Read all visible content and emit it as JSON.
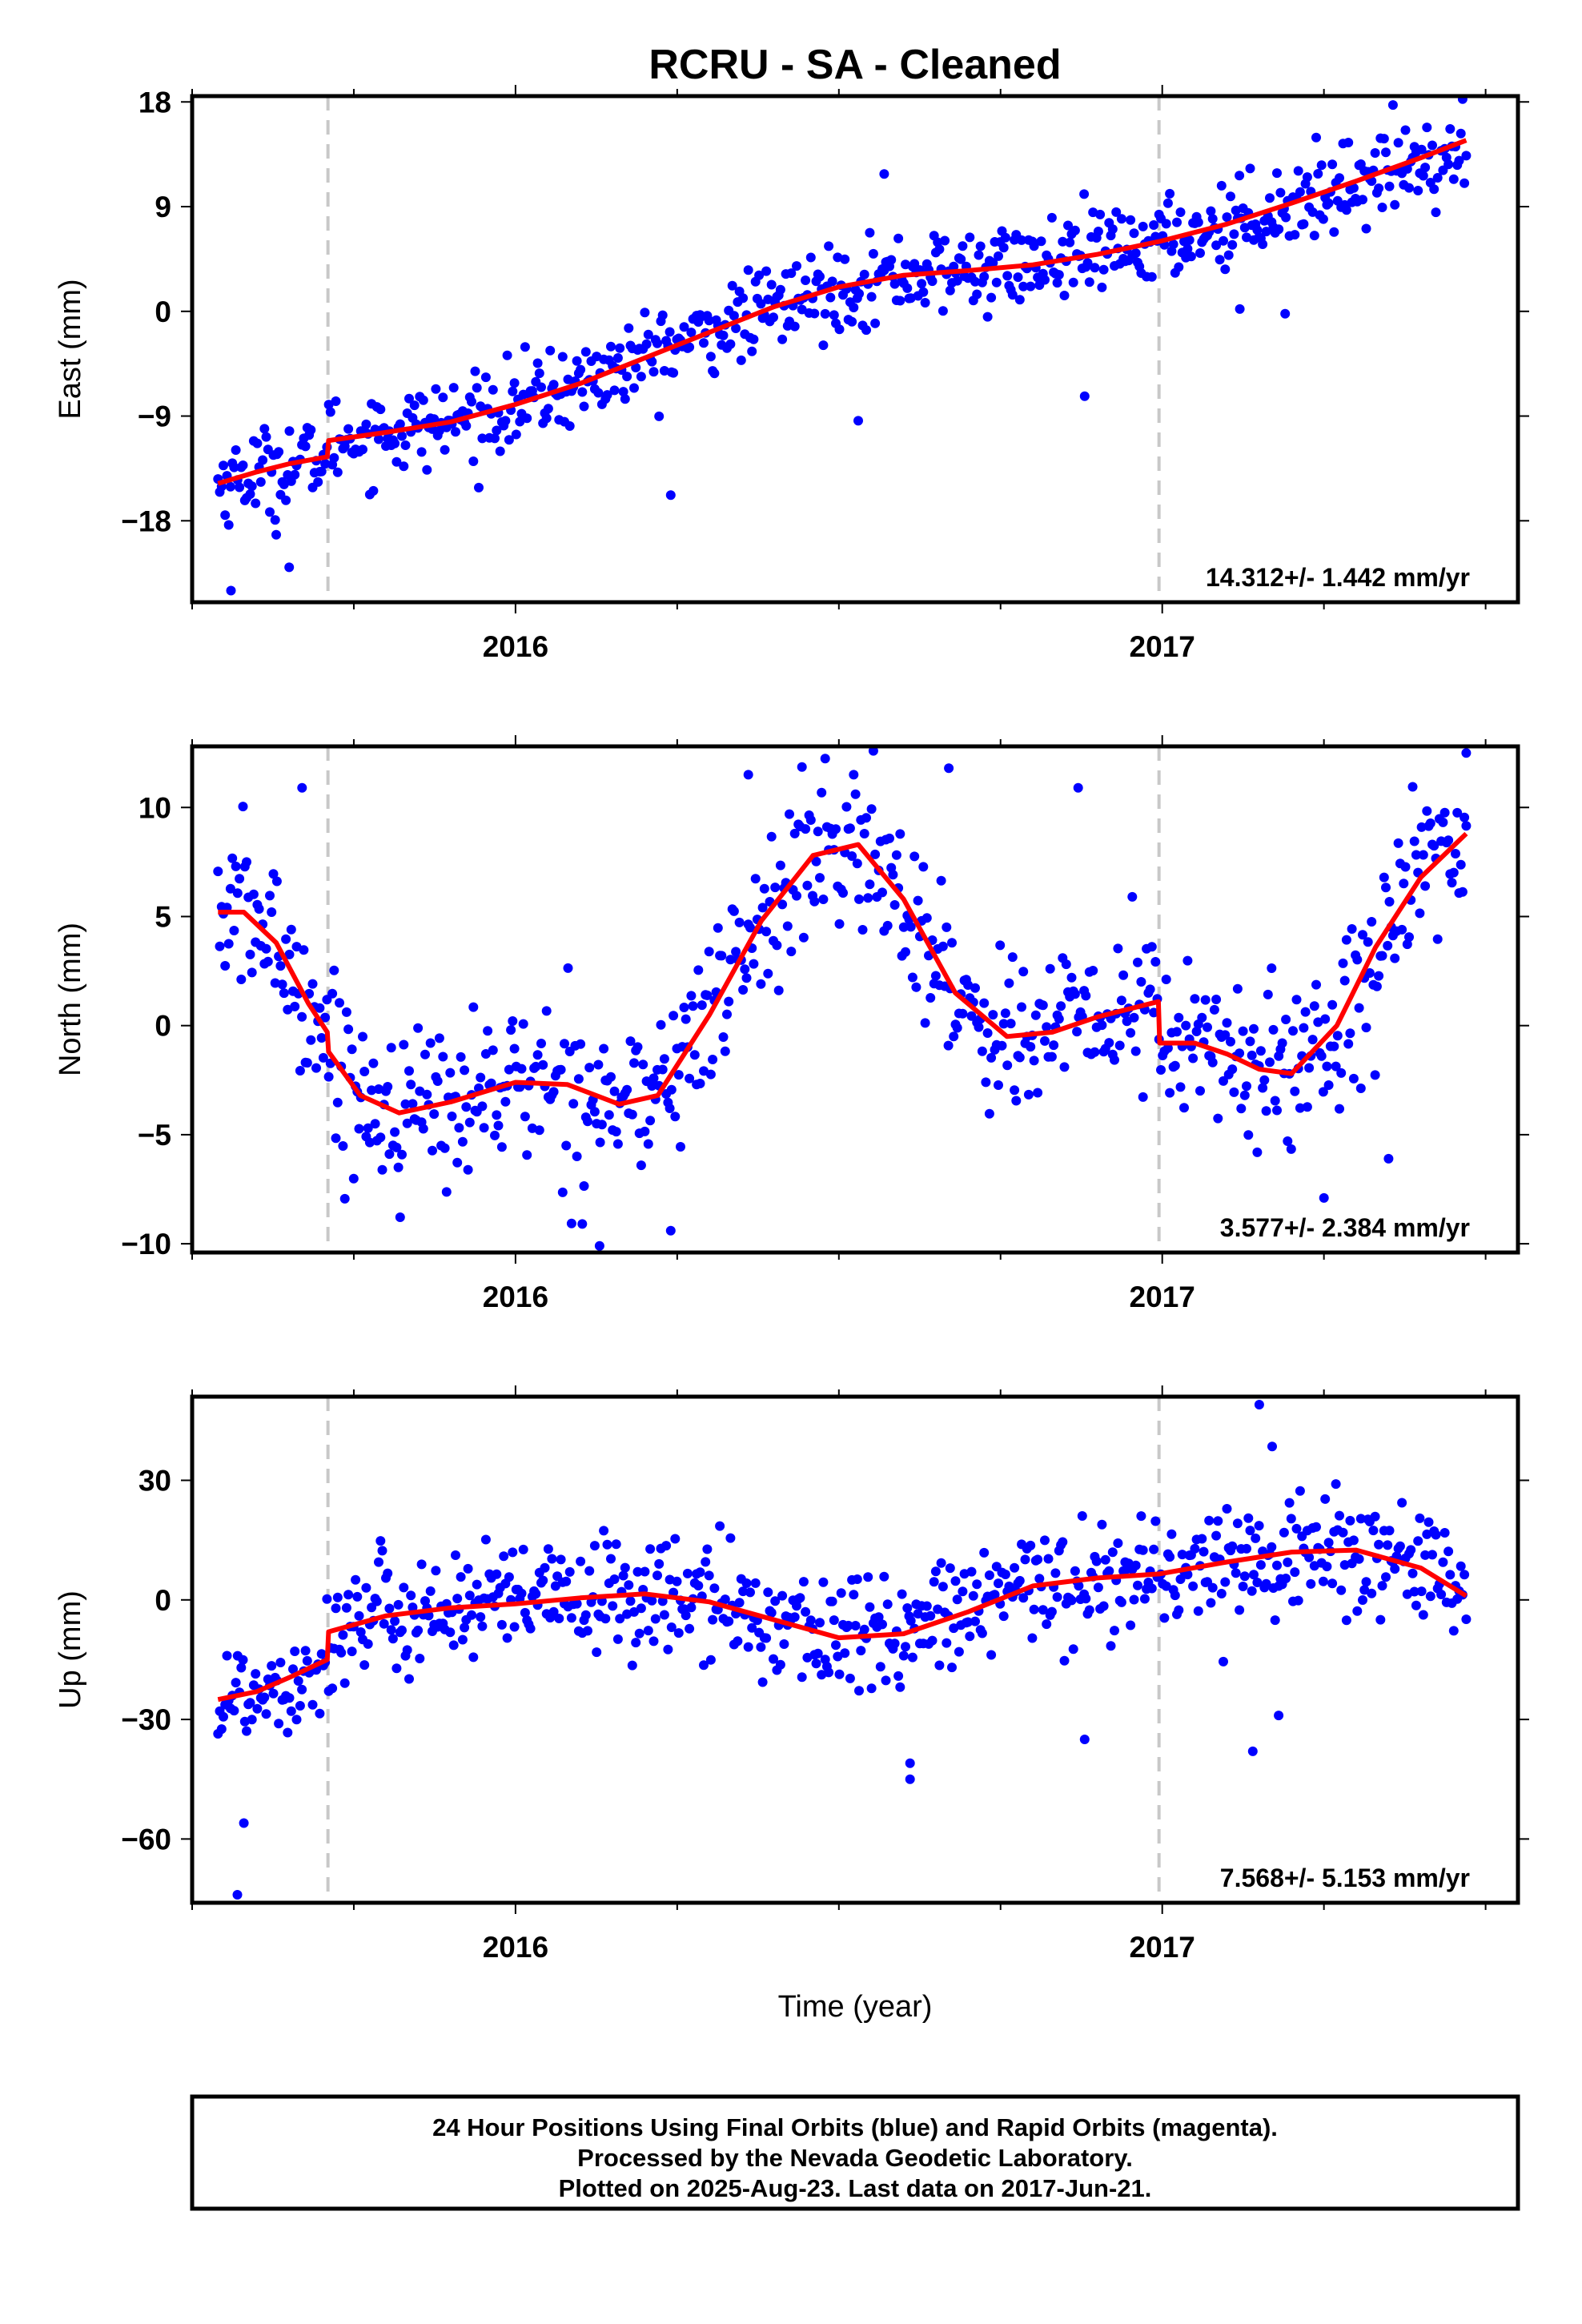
{
  "title": "RCRU  - SA - Cleaned",
  "xlabel": "Time (year)",
  "caption": {
    "line1": "24 Hour Positions Using Final Orbits (blue) and Rapid Orbits (magenta).",
    "line2": "Processed by the Nevada Geodetic Laboratory.",
    "line3": "Plotted on 2025-Aug-23. Last data on 2017-Jun-21."
  },
  "colors": {
    "points": "#0000ff",
    "fit": "#ff0000",
    "break_lines": "#c8c8c8",
    "frame": "#000000"
  },
  "chart_data": [
    {
      "type": "scatter",
      "ylabel": "East (mm)",
      "xlim": [
        2015.5,
        2017.55
      ],
      "ylim": [
        -25,
        18.5
      ],
      "yticks": [
        18,
        9,
        0,
        -9,
        -18
      ],
      "ytick_labels": [
        "18",
        "9",
        "0",
        "−9",
        "−18"
      ],
      "xticks": [
        2016,
        2017
      ],
      "xtick_labels": [
        "2016",
        "2017"
      ],
      "break_lines": [
        2015.71,
        2016.995
      ],
      "rate_label": "14.312+/- 1.442 mm/yr",
      "fit": {
        "x": [
          2015.54,
          2015.6,
          2015.65,
          2015.709,
          2015.711,
          2015.8,
          2015.9,
          2016.0,
          2016.1,
          2016.2,
          2016.3,
          2016.4,
          2016.5,
          2016.6,
          2016.7,
          2016.8,
          2016.9,
          2016.995,
          2017.1,
          2017.2,
          2017.3,
          2017.4,
          2017.47
        ],
        "y": [
          -14.8,
          -13.8,
          -13.1,
          -12.5,
          -11.1,
          -10.4,
          -9.5,
          -8.0,
          -6.2,
          -4.0,
          -1.8,
          0.4,
          2.1,
          3.1,
          3.5,
          4.0,
          4.9,
          6.0,
          7.5,
          9.3,
          11.2,
          13.2,
          14.7
        ]
      },
      "noise": 1.8,
      "outliers": [
        [
          2015.56,
          -24.0
        ],
        [
          2015.65,
          -22.0
        ],
        [
          2015.63,
          -19.2
        ],
        [
          2016.24,
          -15.8
        ],
        [
          2016.57,
          11.8
        ],
        [
          2016.53,
          -9.4
        ],
        [
          2016.88,
          -7.3
        ],
        [
          2017.12,
          0.2
        ],
        [
          2017.19,
          -0.2
        ]
      ]
    },
    {
      "type": "scatter",
      "ylabel": "North (mm)",
      "xlim": [
        2015.5,
        2017.55
      ],
      "ylim": [
        -10.4,
        12.8
      ],
      "yticks": [
        10,
        5,
        0,
        -5,
        -10
      ],
      "ytick_labels": [
        "10",
        "5",
        "0",
        "−5",
        "−10"
      ],
      "xticks": [
        2016,
        2017
      ],
      "xtick_labels": [
        "2016",
        "2017"
      ],
      "break_lines": [
        2015.71,
        2016.995
      ],
      "rate_label": "3.577+/- 2.384 mm/yr",
      "fit": {
        "x": [
          2015.54,
          2015.58,
          2015.63,
          2015.68,
          2015.709,
          2015.711,
          2015.76,
          2015.82,
          2015.9,
          2016.0,
          2016.08,
          2016.16,
          2016.22,
          2016.3,
          2016.38,
          2016.46,
          2016.53,
          2016.6,
          2016.68,
          2016.76,
          2016.83,
          2016.9,
          2016.994,
          2016.996,
          2017.05,
          2017.1,
          2017.15,
          2017.2,
          2017.27,
          2017.33,
          2017.4,
          2017.47
        ],
        "y": [
          5.2,
          5.2,
          3.8,
          1.0,
          -0.3,
          -1.2,
          -3.2,
          -4.0,
          -3.5,
          -2.6,
          -2.7,
          -3.6,
          -3.2,
          0.5,
          4.8,
          7.8,
          8.3,
          5.8,
          1.5,
          -0.5,
          -0.3,
          0.4,
          1.1,
          -0.8,
          -0.8,
          -1.3,
          -2.0,
          -2.2,
          0.0,
          3.6,
          6.8,
          8.8
        ]
      },
      "noise": 1.9,
      "outliers": [
        [
          2016.36,
          11.5
        ],
        [
          2016.67,
          11.8
        ],
        [
          2016.87,
          10.9
        ],
        [
          2017.47,
          12.5
        ],
        [
          2015.67,
          10.9
        ],
        [
          2016.13,
          -10.1
        ],
        [
          2016.24,
          -9.4
        ],
        [
          2017.25,
          -7.9
        ],
        [
          2017.35,
          -6.1
        ]
      ]
    },
    {
      "type": "scatter",
      "ylabel": "Up (mm)",
      "xlim": [
        2015.5,
        2017.55
      ],
      "ylim": [
        -76,
        51
      ],
      "yticks": [
        30,
        0,
        -30,
        -60
      ],
      "ytick_labels": [
        "30",
        "0",
        "−30",
        "−60"
      ],
      "xticks": [
        2016,
        2017
      ],
      "xtick_labels": [
        "2016",
        "2017"
      ],
      "break_lines": [
        2015.71,
        2016.995
      ],
      "rate_label": "7.568+/- 5.153 mm/yr",
      "fit": {
        "x": [
          2015.54,
          2015.6,
          2015.65,
          2015.709,
          2015.711,
          2015.8,
          2015.9,
          2016.0,
          2016.1,
          2016.2,
          2016.3,
          2016.4,
          2016.5,
          2016.6,
          2016.7,
          2016.8,
          2016.9,
          2016.995,
          2017.1,
          2017.2,
          2017.3,
          2017.4,
          2017.47
        ],
        "y": [
          -25.0,
          -23.0,
          -19.5,
          -15.0,
          -8.0,
          -4.0,
          -2.0,
          -1.0,
          0.5,
          1.5,
          -0.5,
          -5.0,
          -9.5,
          -8.5,
          -3.0,
          3.5,
          5.5,
          6.5,
          9.5,
          12.0,
          12.5,
          8.0,
          1.0
        ]
      },
      "noise": 7.5,
      "outliers": [
        [
          2015.57,
          -74.0
        ],
        [
          2015.58,
          -56.0
        ],
        [
          2016.61,
          -45.0
        ],
        [
          2016.61,
          -41.0
        ],
        [
          2017.15,
          49.0
        ],
        [
          2017.17,
          38.5
        ],
        [
          2017.14,
          -38.0
        ],
        [
          2017.18,
          -29.0
        ],
        [
          2016.88,
          -35.0
        ]
      ]
    }
  ]
}
